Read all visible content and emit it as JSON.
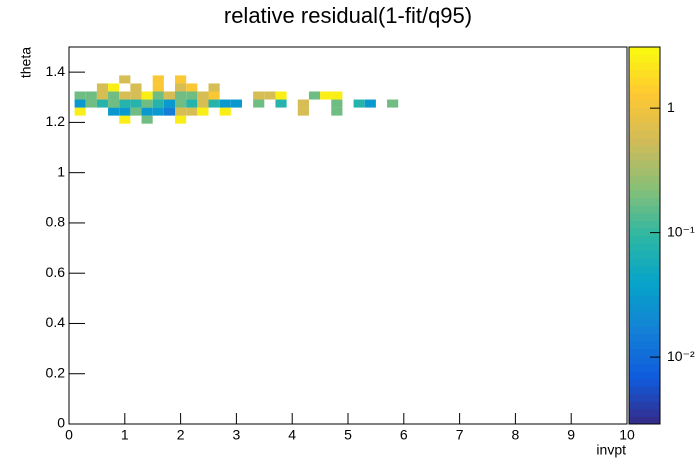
{
  "chart_data": {
    "type": "heatmap",
    "title": "relative residual(1-fit/q95)",
    "x_label": "invpt",
    "y_label": "theta",
    "xlim": [
      0,
      10
    ],
    "xticks": [
      0,
      1,
      2,
      3,
      4,
      5,
      6,
      7,
      8,
      9,
      10
    ],
    "ylim": [
      0,
      1.5
    ],
    "yticks": [
      0,
      0.2,
      0.4,
      0.6,
      0.8,
      1,
      1.2,
      1.4
    ],
    "zlim": [
      0.0029,
      3.1
    ],
    "zscale": "log",
    "zticks": [
      {
        "value": 0.01,
        "label": "10⁻²"
      },
      {
        "value": 0.1,
        "label": "10⁻¹"
      },
      1
    ],
    "palette": [
      "#352a87",
      "#0f5cdd",
      "#1481d6",
      "#06a4ca",
      "#2eb7a4",
      "#87bf77",
      "#d1bb59",
      "#fec832",
      "#f9fb0e"
    ],
    "xbins": [
      0.1,
      0.3,
      0.5,
      0.7,
      0.9,
      1.1,
      1.3,
      1.5,
      1.7,
      1.9,
      2.1,
      2.3,
      2.5,
      2.7,
      2.9,
      3.1,
      3.3,
      3.5,
      3.7,
      3.9,
      4.1,
      4.3,
      4.5,
      4.7,
      4.9,
      5.1,
      5.3,
      5.5,
      5.7,
      5.9,
      6.1
    ],
    "ybins": [
      1.195,
      1.227,
      1.259,
      1.291,
      1.323,
      1.355,
      1.387
    ],
    "z": [
      [
        null,
        null,
        null,
        null,
        2.5,
        null,
        0.18,
        null,
        null,
        2.5,
        null,
        null,
        null,
        null,
        null,
        null,
        null,
        null,
        null,
        null,
        null,
        null,
        null,
        null,
        null,
        null,
        null,
        null,
        null,
        null
      ],
      [
        2.5,
        null,
        null,
        0.03,
        0.03,
        0.18,
        0.03,
        0.03,
        0.015,
        0.6,
        0.6,
        2.5,
        null,
        2.5,
        null,
        null,
        null,
        null,
        null,
        null,
        0.6,
        null,
        null,
        0.18,
        null,
        null,
        null,
        null,
        null,
        null
      ],
      [
        0.03,
        0.18,
        0.08,
        0.18,
        0.08,
        0.08,
        0.18,
        0.08,
        0.03,
        0.18,
        0.08,
        0.6,
        0.08,
        0.03,
        0.03,
        null,
        0.18,
        null,
        0.08,
        null,
        0.6,
        null,
        null,
        0.18,
        null,
        0.08,
        0.03,
        null,
        0.18,
        null
      ],
      [
        0.18,
        0.18,
        0.6,
        0.18,
        0.6,
        0.6,
        2.5,
        0.18,
        0.6,
        0.18,
        0.18,
        0.6,
        1.2,
        null,
        null,
        null,
        0.6,
        0.6,
        2.5,
        null,
        null,
        0.18,
        2.5,
        2.5,
        null,
        null,
        null,
        null,
        null,
        null
      ],
      [
        null,
        null,
        0.6,
        2.5,
        null,
        0.6,
        null,
        1.2,
        null,
        0.6,
        1.2,
        null,
        0.6,
        null,
        null,
        null,
        null,
        null,
        null,
        null,
        null,
        null,
        null,
        null,
        null,
        null,
        null,
        null,
        null,
        null
      ],
      [
        null,
        null,
        null,
        null,
        0.6,
        null,
        null,
        1.2,
        null,
        1.2,
        null,
        null,
        null,
        null,
        null,
        null,
        null,
        null,
        null,
        null,
        null,
        null,
        null,
        null,
        null,
        null,
        null,
        null,
        null,
        null
      ]
    ]
  }
}
